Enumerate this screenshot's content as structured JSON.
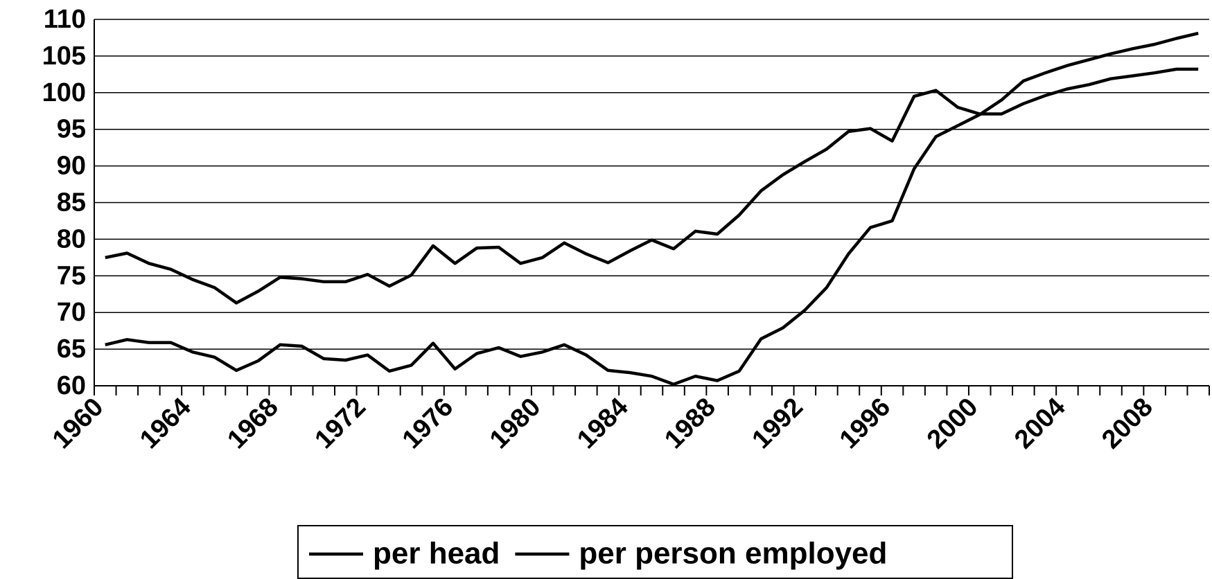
{
  "chart_data": {
    "type": "line",
    "categories": [
      "1960",
      null,
      null,
      null,
      "1964",
      null,
      null,
      null,
      "1968",
      null,
      null,
      null,
      "1972",
      null,
      null,
      null,
      "1976",
      null,
      null,
      null,
      "1980",
      null,
      null,
      null,
      "1984",
      null,
      null,
      null,
      "1988",
      null,
      null,
      null,
      "1992",
      null,
      null,
      null,
      "1996",
      null,
      null,
      null,
      "2000",
      null,
      null,
      null,
      "2004",
      null,
      null,
      null,
      "2008",
      null,
      null
    ],
    "series": [
      {
        "name": "per head",
        "color": "#000000",
        "values": [
          77.5,
          78.1,
          76.7,
          75.9,
          74.5,
          73.4,
          71.3,
          72.9,
          74.8,
          74.6,
          74.2,
          74.2,
          75.2,
          73.6,
          75.1,
          79.1,
          76.7,
          78.8,
          78.9,
          76.7,
          77.5,
          79.5,
          78.0,
          76.8,
          78.4,
          79.9,
          78.7,
          81.1,
          80.7,
          83.3,
          86.6,
          88.8,
          90.6,
          92.3,
          94.7,
          95.1,
          93.4,
          99.5,
          100.3,
          98.0,
          97.1,
          97.1,
          98.5,
          99.6,
          100.5,
          101.1,
          101.9,
          102.3,
          102.7,
          103.2,
          103.2
        ]
      },
      {
        "name": "per person employed",
        "color": "#000000",
        "values": [
          65.6,
          66.3,
          65.9,
          65.9,
          64.6,
          63.9,
          62.1,
          63.4,
          65.6,
          65.4,
          63.7,
          63.5,
          64.2,
          62.0,
          62.8,
          65.8,
          62.3,
          64.4,
          65.2,
          64.0,
          64.6,
          65.6,
          64.2,
          62.1,
          61.8,
          61.3,
          60.2,
          61.3,
          60.7,
          62.0,
          66.4,
          67.9,
          70.3,
          73.4,
          78.0,
          81.6,
          82.5,
          89.6,
          94.0,
          95.5,
          97.0,
          99.0,
          101.6,
          102.7,
          103.7,
          104.5,
          105.3,
          106.0,
          106.6,
          107.4,
          108.1
        ]
      }
    ],
    "ylim": [
      60,
      110
    ],
    "yticks": [
      60,
      65,
      70,
      75,
      80,
      85,
      90,
      95,
      100,
      105,
      110
    ],
    "grid": true,
    "legend": "bottom"
  }
}
